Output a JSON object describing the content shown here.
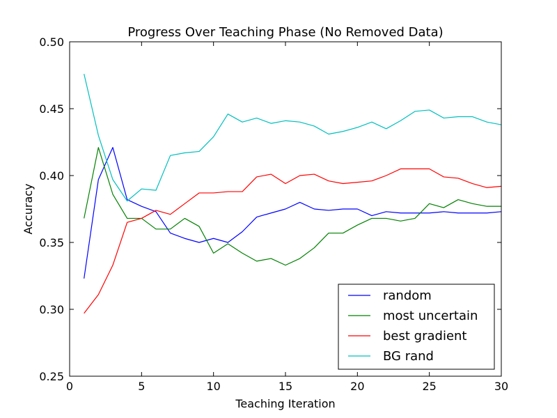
{
  "chart_data": {
    "type": "line",
    "title": "Progress Over Teaching Phase (No Removed Data)",
    "xlabel": "Teaching Iteration",
    "ylabel": "Accuracy",
    "xlim": [
      0,
      30
    ],
    "ylim": [
      0.25,
      0.5
    ],
    "xticks": [
      0,
      5,
      10,
      15,
      20,
      25,
      30
    ],
    "yticks": [
      0.25,
      0.3,
      0.35,
      0.4,
      0.45,
      0.5
    ],
    "xtick_labels": [
      "0",
      "5",
      "10",
      "15",
      "20",
      "25",
      "30"
    ],
    "ytick_labels": [
      "0.25",
      "0.30",
      "0.35",
      "0.40",
      "0.45",
      "0.50"
    ],
    "grid": false,
    "legend_position": "lower-right",
    "x": [
      1,
      2,
      3,
      4,
      5,
      6,
      7,
      8,
      9,
      10,
      11,
      12,
      13,
      14,
      15,
      16,
      17,
      18,
      19,
      20,
      21,
      22,
      23,
      24,
      25,
      26,
      27,
      28,
      29,
      30
    ],
    "series": [
      {
        "name": "random",
        "color": "#0000ff",
        "values": [
          0.323,
          0.397,
          0.421,
          0.382,
          0.377,
          0.373,
          0.357,
          0.353,
          0.35,
          0.353,
          0.35,
          0.358,
          0.369,
          0.372,
          0.375,
          0.38,
          0.375,
          0.374,
          0.375,
          0.375,
          0.37,
          0.373,
          0.372,
          0.372,
          0.372,
          0.373,
          0.372,
          0.372,
          0.372,
          0.373
        ]
      },
      {
        "name": "most uncertain",
        "color": "#008000",
        "values": [
          0.368,
          0.421,
          0.386,
          0.368,
          0.368,
          0.36,
          0.36,
          0.368,
          0.362,
          0.342,
          0.349,
          0.342,
          0.336,
          0.338,
          0.333,
          0.338,
          0.346,
          0.357,
          0.357,
          0.363,
          0.368,
          0.368,
          0.366,
          0.368,
          0.379,
          0.376,
          0.382,
          0.379,
          0.377,
          0.377
        ]
      },
      {
        "name": "best gradient",
        "color": "#ff0000",
        "values": [
          0.297,
          0.311,
          0.333,
          0.365,
          0.368,
          0.374,
          0.371,
          0.379,
          0.387,
          0.387,
          0.388,
          0.388,
          0.399,
          0.401,
          0.394,
          0.4,
          0.401,
          0.396,
          0.394,
          0.395,
          0.396,
          0.4,
          0.405,
          0.405,
          0.405,
          0.399,
          0.398,
          0.394,
          0.391,
          0.392
        ]
      },
      {
        "name": "BG rand",
        "color": "#00bfbf",
        "values": [
          0.476,
          0.43,
          0.397,
          0.381,
          0.39,
          0.389,
          0.415,
          0.417,
          0.418,
          0.429,
          0.446,
          0.44,
          0.443,
          0.439,
          0.441,
          0.44,
          0.437,
          0.431,
          0.433,
          0.436,
          0.44,
          0.435,
          0.441,
          0.448,
          0.449,
          0.443,
          0.444,
          0.444,
          0.44,
          0.438
        ]
      }
    ]
  }
}
